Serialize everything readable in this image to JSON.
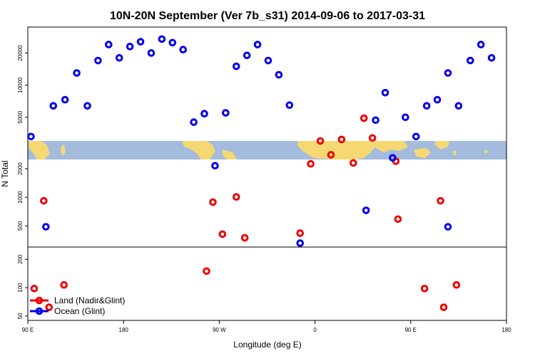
{
  "chart_data": {
    "type": "scatter",
    "title": "10N-20N September (Ver 7b_s31)   2014-09-06 to 2017-03-31",
    "xlabel": "Longitude (deg E)",
    "ylabel": "N Total",
    "y_scale": "log",
    "x_ticks": [
      {
        "value": 90,
        "label": "90 E"
      },
      {
        "value": 180,
        "label": "180"
      },
      {
        "value": 270,
        "label": "90 W"
      },
      {
        "value": 360,
        "label": "0"
      },
      {
        "value": 450,
        "label": "90 E"
      },
      {
        "value": 540,
        "label": "180"
      }
    ],
    "panels": [
      {
        "name": "top",
        "ylim": [
          3000,
          35000
        ],
        "y_ticks": [
          5000,
          10000,
          20000
        ]
      },
      {
        "name": "middle",
        "ylim": [
          300,
          2500
        ],
        "y_ticks": [
          500,
          1000,
          2000
        ]
      },
      {
        "name": "bottom",
        "ylim": [
          45,
          270
        ],
        "y_ticks": [
          50,
          100,
          200
        ]
      }
    ],
    "map_band": {
      "colors": {
        "ocean": "#a3bbdc",
        "land": "#f6d873"
      }
    },
    "series": [
      {
        "name": "Land (Nadir&Glint)",
        "color": "#ee0000",
        "points": [
          {
            "x": 96,
            "y": 98
          },
          {
            "x": 105,
            "y": 920
          },
          {
            "x": 110,
            "y": 62
          },
          {
            "x": 124,
            "y": 107
          },
          {
            "x": 258,
            "y": 150
          },
          {
            "x": 264,
            "y": 890
          },
          {
            "x": 273,
            "y": 410
          },
          {
            "x": 286,
            "y": 1010
          },
          {
            "x": 294,
            "y": 375
          },
          {
            "x": 346,
            "y": 420
          },
          {
            "x": 356,
            "y": 2250
          },
          {
            "x": 365,
            "y": 3000
          },
          {
            "x": 375,
            "y": 2800
          },
          {
            "x": 385,
            "y": 3100
          },
          {
            "x": 396,
            "y": 2300
          },
          {
            "x": 406,
            "y": 4900
          },
          {
            "x": 414,
            "y": 3200
          },
          {
            "x": 436,
            "y": 2400
          },
          {
            "x": 438,
            "y": 590
          },
          {
            "x": 463,
            "y": 98
          },
          {
            "x": 478,
            "y": 920
          },
          {
            "x": 481,
            "y": 62
          },
          {
            "x": 493,
            "y": 107
          }
        ]
      },
      {
        "name": "Ocean (Glint)",
        "color": "#0000ee",
        "points": [
          {
            "x": 93,
            "y": 3300
          },
          {
            "x": 107,
            "y": 490
          },
          {
            "x": 114,
            "y": 6400
          },
          {
            "x": 125,
            "y": 7300
          },
          {
            "x": 136,
            "y": 13000
          },
          {
            "x": 146,
            "y": 6400
          },
          {
            "x": 156,
            "y": 17000
          },
          {
            "x": 166,
            "y": 24000
          },
          {
            "x": 176,
            "y": 18000
          },
          {
            "x": 186,
            "y": 23000
          },
          {
            "x": 196,
            "y": 25500
          },
          {
            "x": 206,
            "y": 20000
          },
          {
            "x": 216,
            "y": 27000
          },
          {
            "x": 226,
            "y": 25000
          },
          {
            "x": 236,
            "y": 21500
          },
          {
            "x": 246,
            "y": 4500
          },
          {
            "x": 256,
            "y": 5400
          },
          {
            "x": 266,
            "y": 2150
          },
          {
            "x": 276,
            "y": 5500
          },
          {
            "x": 286,
            "y": 15000
          },
          {
            "x": 296,
            "y": 19000
          },
          {
            "x": 306,
            "y": 24000
          },
          {
            "x": 316,
            "y": 17000
          },
          {
            "x": 326,
            "y": 12500
          },
          {
            "x": 336,
            "y": 6500
          },
          {
            "x": 346,
            "y": 330
          },
          {
            "x": 408,
            "y": 730
          },
          {
            "x": 417,
            "y": 4700
          },
          {
            "x": 426,
            "y": 8500
          },
          {
            "x": 433,
            "y": 2600
          },
          {
            "x": 445,
            "y": 5000
          },
          {
            "x": 455,
            "y": 3300
          },
          {
            "x": 465,
            "y": 6400
          },
          {
            "x": 475,
            "y": 7300
          },
          {
            "x": 485,
            "y": 13000
          },
          {
            "x": 485,
            "y": 490
          },
          {
            "x": 495,
            "y": 6400
          },
          {
            "x": 506,
            "y": 17000
          },
          {
            "x": 516,
            "y": 24000
          },
          {
            "x": 526,
            "y": 18000
          }
        ]
      }
    ],
    "legend": {
      "position": "bottom-left"
    }
  }
}
